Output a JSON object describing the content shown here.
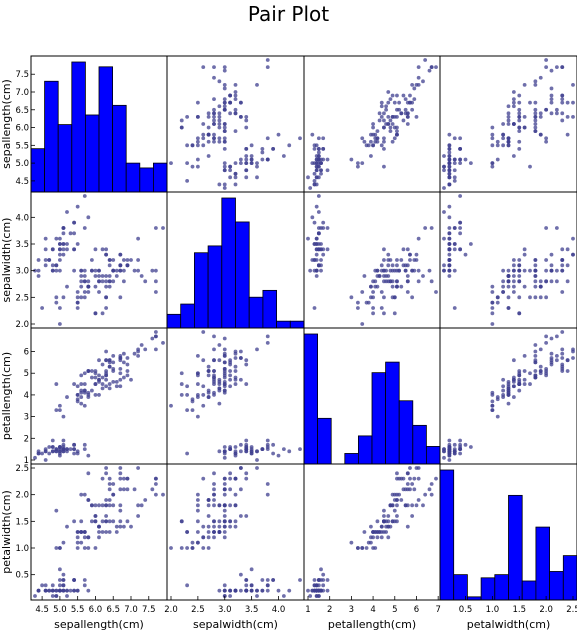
{
  "title": "Pair Plot",
  "colors": {
    "bar": "#0000ff",
    "point": "#3f3f8f"
  },
  "chart_data": {
    "type": "scatter",
    "layout": "scatter-matrix",
    "title": "Pair Plot",
    "grid": false,
    "variables": [
      {
        "name": "sepallength(cm)",
        "range": [
          4.3,
          7.9
        ],
        "ticks": [
          "4.5",
          "5.0",
          "5.5",
          "6.0",
          "6.5",
          "7.0",
          "7.5"
        ],
        "y_ticks": [
          "4.5",
          "5.0",
          "5.5",
          "6.0",
          "6.5",
          "7.0",
          "7.5"
        ]
      },
      {
        "name": "sepalwidth(cm)",
        "range": [
          2.0,
          4.4
        ],
        "ticks": [
          "2.0",
          "2.5",
          "3.0",
          "3.5",
          "4.0"
        ],
        "y_ticks": [
          "2.0",
          "2.5",
          "3.0",
          "3.5",
          "4.0"
        ]
      },
      {
        "name": "petallength(cm)",
        "range": [
          1.0,
          6.9
        ],
        "ticks": [
          "1",
          "2",
          "3",
          "4",
          "5",
          "6",
          "7"
        ],
        "y_ticks": [
          "1",
          "2",
          "3",
          "4",
          "5",
          "6"
        ]
      },
      {
        "name": "petalwidth(cm)",
        "range": [
          0.1,
          2.5
        ],
        "ticks": [
          "0.5",
          "1.0",
          "1.5",
          "2.0",
          "2.5"
        ],
        "y_ticks": [
          "0.5",
          "1.0",
          "1.5",
          "2.0",
          "2.5"
        ]
      }
    ],
    "histograms": [
      [
        9,
        23,
        14,
        27,
        16,
        26,
        18,
        6,
        5,
        6
      ],
      [
        4,
        7,
        22,
        24,
        38,
        31,
        9,
        11,
        2,
        2
      ],
      [
        37,
        13,
        0,
        3,
        8,
        26,
        29,
        18,
        11,
        5
      ],
      [
        41,
        8,
        1,
        7,
        8,
        33,
        6,
        23,
        9,
        14
      ]
    ],
    "samples": [
      [
        5.1,
        3.5,
        1.4,
        0.2
      ],
      [
        4.9,
        3.0,
        1.4,
        0.2
      ],
      [
        4.7,
        3.2,
        1.3,
        0.2
      ],
      [
        4.6,
        3.1,
        1.5,
        0.2
      ],
      [
        5.0,
        3.6,
        1.4,
        0.2
      ],
      [
        5.4,
        3.9,
        1.7,
        0.4
      ],
      [
        4.6,
        3.4,
        1.4,
        0.3
      ],
      [
        5.0,
        3.4,
        1.5,
        0.2
      ],
      [
        4.4,
        2.9,
        1.4,
        0.2
      ],
      [
        4.9,
        3.1,
        1.5,
        0.1
      ],
      [
        5.4,
        3.7,
        1.5,
        0.2
      ],
      [
        4.8,
        3.4,
        1.6,
        0.2
      ],
      [
        4.8,
        3.0,
        1.4,
        0.1
      ],
      [
        4.3,
        3.0,
        1.1,
        0.1
      ],
      [
        5.8,
        4.0,
        1.2,
        0.2
      ],
      [
        5.7,
        4.4,
        1.5,
        0.4
      ],
      [
        5.4,
        3.9,
        1.3,
        0.4
      ],
      [
        5.1,
        3.5,
        1.4,
        0.3
      ],
      [
        5.7,
        3.8,
        1.7,
        0.3
      ],
      [
        5.1,
        3.8,
        1.5,
        0.3
      ],
      [
        5.4,
        3.4,
        1.7,
        0.2
      ],
      [
        5.1,
        3.7,
        1.5,
        0.4
      ],
      [
        4.6,
        3.6,
        1.0,
        0.2
      ],
      [
        5.1,
        3.3,
        1.7,
        0.5
      ],
      [
        4.8,
        3.4,
        1.9,
        0.2
      ],
      [
        5.0,
        3.0,
        1.6,
        0.2
      ],
      [
        5.0,
        3.4,
        1.6,
        0.4
      ],
      [
        5.2,
        3.5,
        1.5,
        0.2
      ],
      [
        5.2,
        3.4,
        1.4,
        0.2
      ],
      [
        4.7,
        3.2,
        1.6,
        0.2
      ],
      [
        4.8,
        3.1,
        1.6,
        0.2
      ],
      [
        5.4,
        3.4,
        1.5,
        0.4
      ],
      [
        5.2,
        4.1,
        1.5,
        0.1
      ],
      [
        5.5,
        4.2,
        1.4,
        0.2
      ],
      [
        4.9,
        3.1,
        1.5,
        0.2
      ],
      [
        5.0,
        3.2,
        1.2,
        0.2
      ],
      [
        5.5,
        3.5,
        1.3,
        0.2
      ],
      [
        4.9,
        3.6,
        1.4,
        0.1
      ],
      [
        4.4,
        3.0,
        1.3,
        0.2
      ],
      [
        5.1,
        3.4,
        1.5,
        0.2
      ],
      [
        5.0,
        3.5,
        1.3,
        0.3
      ],
      [
        4.5,
        2.3,
        1.3,
        0.3
      ],
      [
        4.4,
        3.2,
        1.3,
        0.2
      ],
      [
        5.0,
        3.5,
        1.6,
        0.6
      ],
      [
        5.1,
        3.8,
        1.9,
        0.4
      ],
      [
        4.8,
        3.0,
        1.4,
        0.3
      ],
      [
        5.1,
        3.8,
        1.6,
        0.2
      ],
      [
        4.6,
        3.2,
        1.4,
        0.2
      ],
      [
        5.3,
        3.7,
        1.5,
        0.2
      ],
      [
        5.0,
        3.3,
        1.4,
        0.2
      ],
      [
        7.0,
        3.2,
        4.7,
        1.4
      ],
      [
        6.4,
        3.2,
        4.5,
        1.5
      ],
      [
        6.9,
        3.1,
        4.9,
        1.5
      ],
      [
        5.5,
        2.3,
        4.0,
        1.3
      ],
      [
        6.5,
        2.8,
        4.6,
        1.5
      ],
      [
        5.7,
        2.8,
        4.5,
        1.3
      ],
      [
        6.3,
        3.3,
        4.7,
        1.6
      ],
      [
        4.9,
        2.4,
        3.3,
        1.0
      ],
      [
        6.6,
        2.9,
        4.6,
        1.3
      ],
      [
        5.2,
        2.7,
        3.9,
        1.4
      ],
      [
        5.0,
        2.0,
        3.5,
        1.0
      ],
      [
        5.9,
        3.0,
        4.2,
        1.5
      ],
      [
        6.0,
        2.2,
        4.0,
        1.0
      ],
      [
        6.1,
        2.9,
        4.7,
        1.4
      ],
      [
        5.6,
        2.9,
        3.6,
        1.3
      ],
      [
        6.7,
        3.1,
        4.4,
        1.4
      ],
      [
        5.6,
        3.0,
        4.5,
        1.5
      ],
      [
        5.8,
        2.7,
        4.1,
        1.0
      ],
      [
        6.2,
        2.2,
        4.5,
        1.5
      ],
      [
        5.6,
        2.5,
        3.9,
        1.1
      ],
      [
        5.9,
        3.2,
        4.8,
        1.8
      ],
      [
        6.1,
        2.8,
        4.0,
        1.3
      ],
      [
        6.3,
        2.5,
        4.9,
        1.5
      ],
      [
        6.1,
        2.8,
        4.7,
        1.2
      ],
      [
        6.4,
        2.9,
        4.3,
        1.3
      ],
      [
        6.6,
        3.0,
        4.4,
        1.4
      ],
      [
        6.8,
        2.8,
        4.8,
        1.4
      ],
      [
        6.7,
        3.0,
        5.0,
        1.7
      ],
      [
        6.0,
        2.9,
        4.5,
        1.5
      ],
      [
        5.7,
        2.6,
        3.5,
        1.0
      ],
      [
        5.5,
        2.4,
        3.8,
        1.1
      ],
      [
        5.5,
        2.4,
        3.7,
        1.0
      ],
      [
        5.8,
        2.7,
        3.9,
        1.2
      ],
      [
        6.0,
        2.7,
        5.1,
        1.6
      ],
      [
        5.4,
        3.0,
        4.5,
        1.5
      ],
      [
        6.0,
        3.4,
        4.5,
        1.6
      ],
      [
        6.7,
        3.1,
        4.7,
        1.5
      ],
      [
        6.3,
        2.3,
        4.4,
        1.3
      ],
      [
        5.6,
        3.0,
        4.1,
        1.3
      ],
      [
        5.5,
        2.5,
        4.0,
        1.3
      ],
      [
        5.5,
        2.6,
        4.4,
        1.2
      ],
      [
        6.1,
        3.0,
        4.6,
        1.4
      ],
      [
        5.8,
        2.6,
        4.0,
        1.2
      ],
      [
        5.0,
        2.3,
        3.3,
        1.0
      ],
      [
        5.6,
        2.7,
        4.2,
        1.3
      ],
      [
        5.7,
        3.0,
        4.2,
        1.2
      ],
      [
        5.7,
        2.9,
        4.2,
        1.3
      ],
      [
        6.2,
        2.9,
        4.3,
        1.3
      ],
      [
        5.1,
        2.5,
        3.0,
        1.1
      ],
      [
        5.7,
        2.8,
        4.1,
        1.3
      ],
      [
        6.3,
        3.3,
        6.0,
        2.5
      ],
      [
        5.8,
        2.7,
        5.1,
        1.9
      ],
      [
        7.1,
        3.0,
        5.9,
        2.1
      ],
      [
        6.3,
        2.9,
        5.6,
        1.8
      ],
      [
        6.5,
        3.0,
        5.8,
        2.2
      ],
      [
        7.6,
        3.0,
        6.6,
        2.1
      ],
      [
        4.9,
        2.5,
        4.5,
        1.7
      ],
      [
        7.3,
        2.9,
        6.3,
        1.8
      ],
      [
        6.7,
        2.5,
        5.8,
        1.8
      ],
      [
        7.2,
        3.6,
        6.1,
        2.5
      ],
      [
        6.5,
        3.2,
        5.1,
        2.0
      ],
      [
        6.4,
        2.7,
        5.3,
        1.9
      ],
      [
        6.8,
        3.0,
        5.5,
        2.1
      ],
      [
        5.7,
        2.5,
        5.0,
        2.0
      ],
      [
        5.8,
        2.8,
        5.1,
        2.4
      ],
      [
        6.4,
        3.2,
        5.3,
        2.3
      ],
      [
        6.5,
        3.0,
        5.5,
        1.8
      ],
      [
        7.7,
        3.8,
        6.7,
        2.2
      ],
      [
        7.7,
        2.6,
        6.9,
        2.3
      ],
      [
        6.0,
        2.2,
        5.0,
        1.5
      ],
      [
        6.9,
        3.2,
        5.7,
        2.3
      ],
      [
        5.6,
        2.8,
        4.9,
        2.0
      ],
      [
        7.7,
        2.8,
        6.7,
        2.0
      ],
      [
        6.3,
        2.7,
        4.9,
        1.8
      ],
      [
        6.7,
        3.3,
        5.7,
        2.1
      ],
      [
        7.2,
        3.2,
        6.0,
        1.8
      ],
      [
        6.2,
        2.8,
        4.8,
        1.8
      ],
      [
        6.1,
        3.0,
        4.9,
        1.8
      ],
      [
        6.4,
        2.8,
        5.6,
        2.1
      ],
      [
        7.2,
        3.0,
        5.8,
        1.6
      ],
      [
        7.4,
        2.8,
        6.1,
        1.9
      ],
      [
        7.9,
        3.8,
        6.4,
        2.0
      ],
      [
        6.4,
        2.8,
        5.6,
        2.2
      ],
      [
        6.3,
        2.8,
        5.1,
        1.5
      ],
      [
        6.1,
        2.6,
        5.6,
        1.4
      ],
      [
        7.7,
        3.0,
        6.1,
        2.3
      ],
      [
        6.3,
        3.4,
        5.6,
        2.4
      ],
      [
        6.4,
        3.1,
        5.5,
        1.8
      ],
      [
        6.0,
        3.0,
        4.8,
        1.8
      ],
      [
        6.9,
        3.1,
        5.4,
        2.1
      ],
      [
        6.7,
        3.1,
        5.6,
        2.4
      ],
      [
        6.9,
        3.1,
        5.1,
        2.3
      ],
      [
        5.8,
        2.7,
        5.1,
        1.9
      ],
      [
        6.8,
        3.2,
        5.9,
        2.3
      ],
      [
        6.7,
        3.3,
        5.7,
        2.5
      ],
      [
        6.7,
        3.0,
        5.2,
        2.3
      ],
      [
        6.3,
        2.5,
        5.0,
        1.9
      ],
      [
        6.5,
        3.0,
        5.2,
        2.0
      ],
      [
        6.2,
        3.4,
        5.4,
        2.3
      ],
      [
        5.9,
        3.0,
        5.1,
        1.8
      ]
    ]
  }
}
